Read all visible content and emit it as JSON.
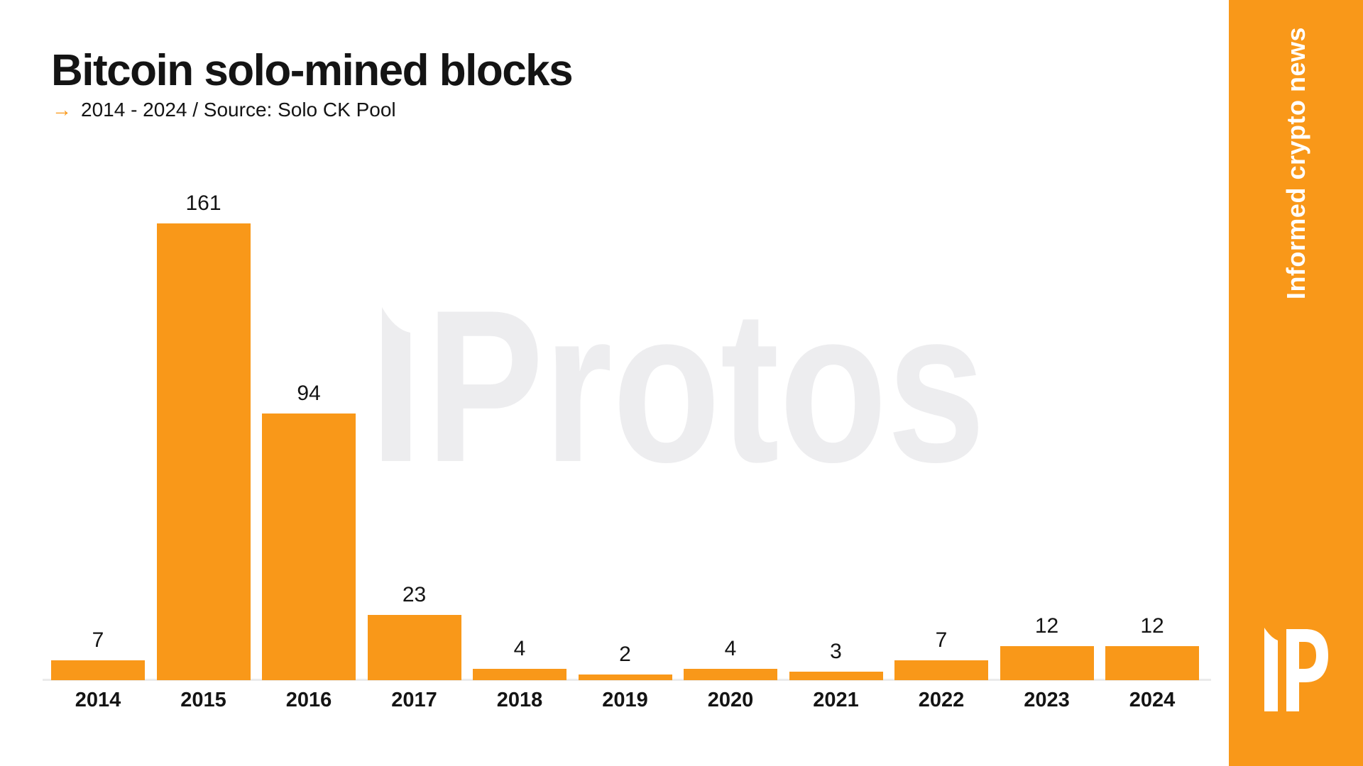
{
  "header": {
    "title": "Bitcoin solo-mined blocks",
    "subtitle_arrow": "→",
    "subtitle": "2014 - 2024 / Source: Solo CK Pool"
  },
  "watermark": {
    "text": "Protos"
  },
  "sidebar": {
    "tagline": "Informed crypto news",
    "logo_name": "protos-ip-logo"
  },
  "chart_data": {
    "type": "bar",
    "title": "Bitcoin solo-mined blocks",
    "subtitle": "2014 - 2024 / Source: Solo CK Pool",
    "source": "Solo CK Pool",
    "categories": [
      "2014",
      "2015",
      "2016",
      "2017",
      "2018",
      "2019",
      "2020",
      "2021",
      "2022",
      "2023",
      "2024"
    ],
    "values": [
      7,
      161,
      94,
      23,
      4,
      2,
      4,
      3,
      7,
      12,
      12
    ],
    "xlabel": "",
    "ylabel": "",
    "ylim": [
      0,
      170
    ],
    "grid": false,
    "y_axis_hidden": true,
    "value_labels": true,
    "legend": false,
    "bar_color": "#F99819"
  },
  "colors": {
    "accent_orange": "#F99819",
    "text_dark": "#141414",
    "axis_line": "#ebebeb",
    "watermark_gray": "#ededef",
    "sidebar_text": "#ffffff",
    "background": "#ffffff"
  }
}
